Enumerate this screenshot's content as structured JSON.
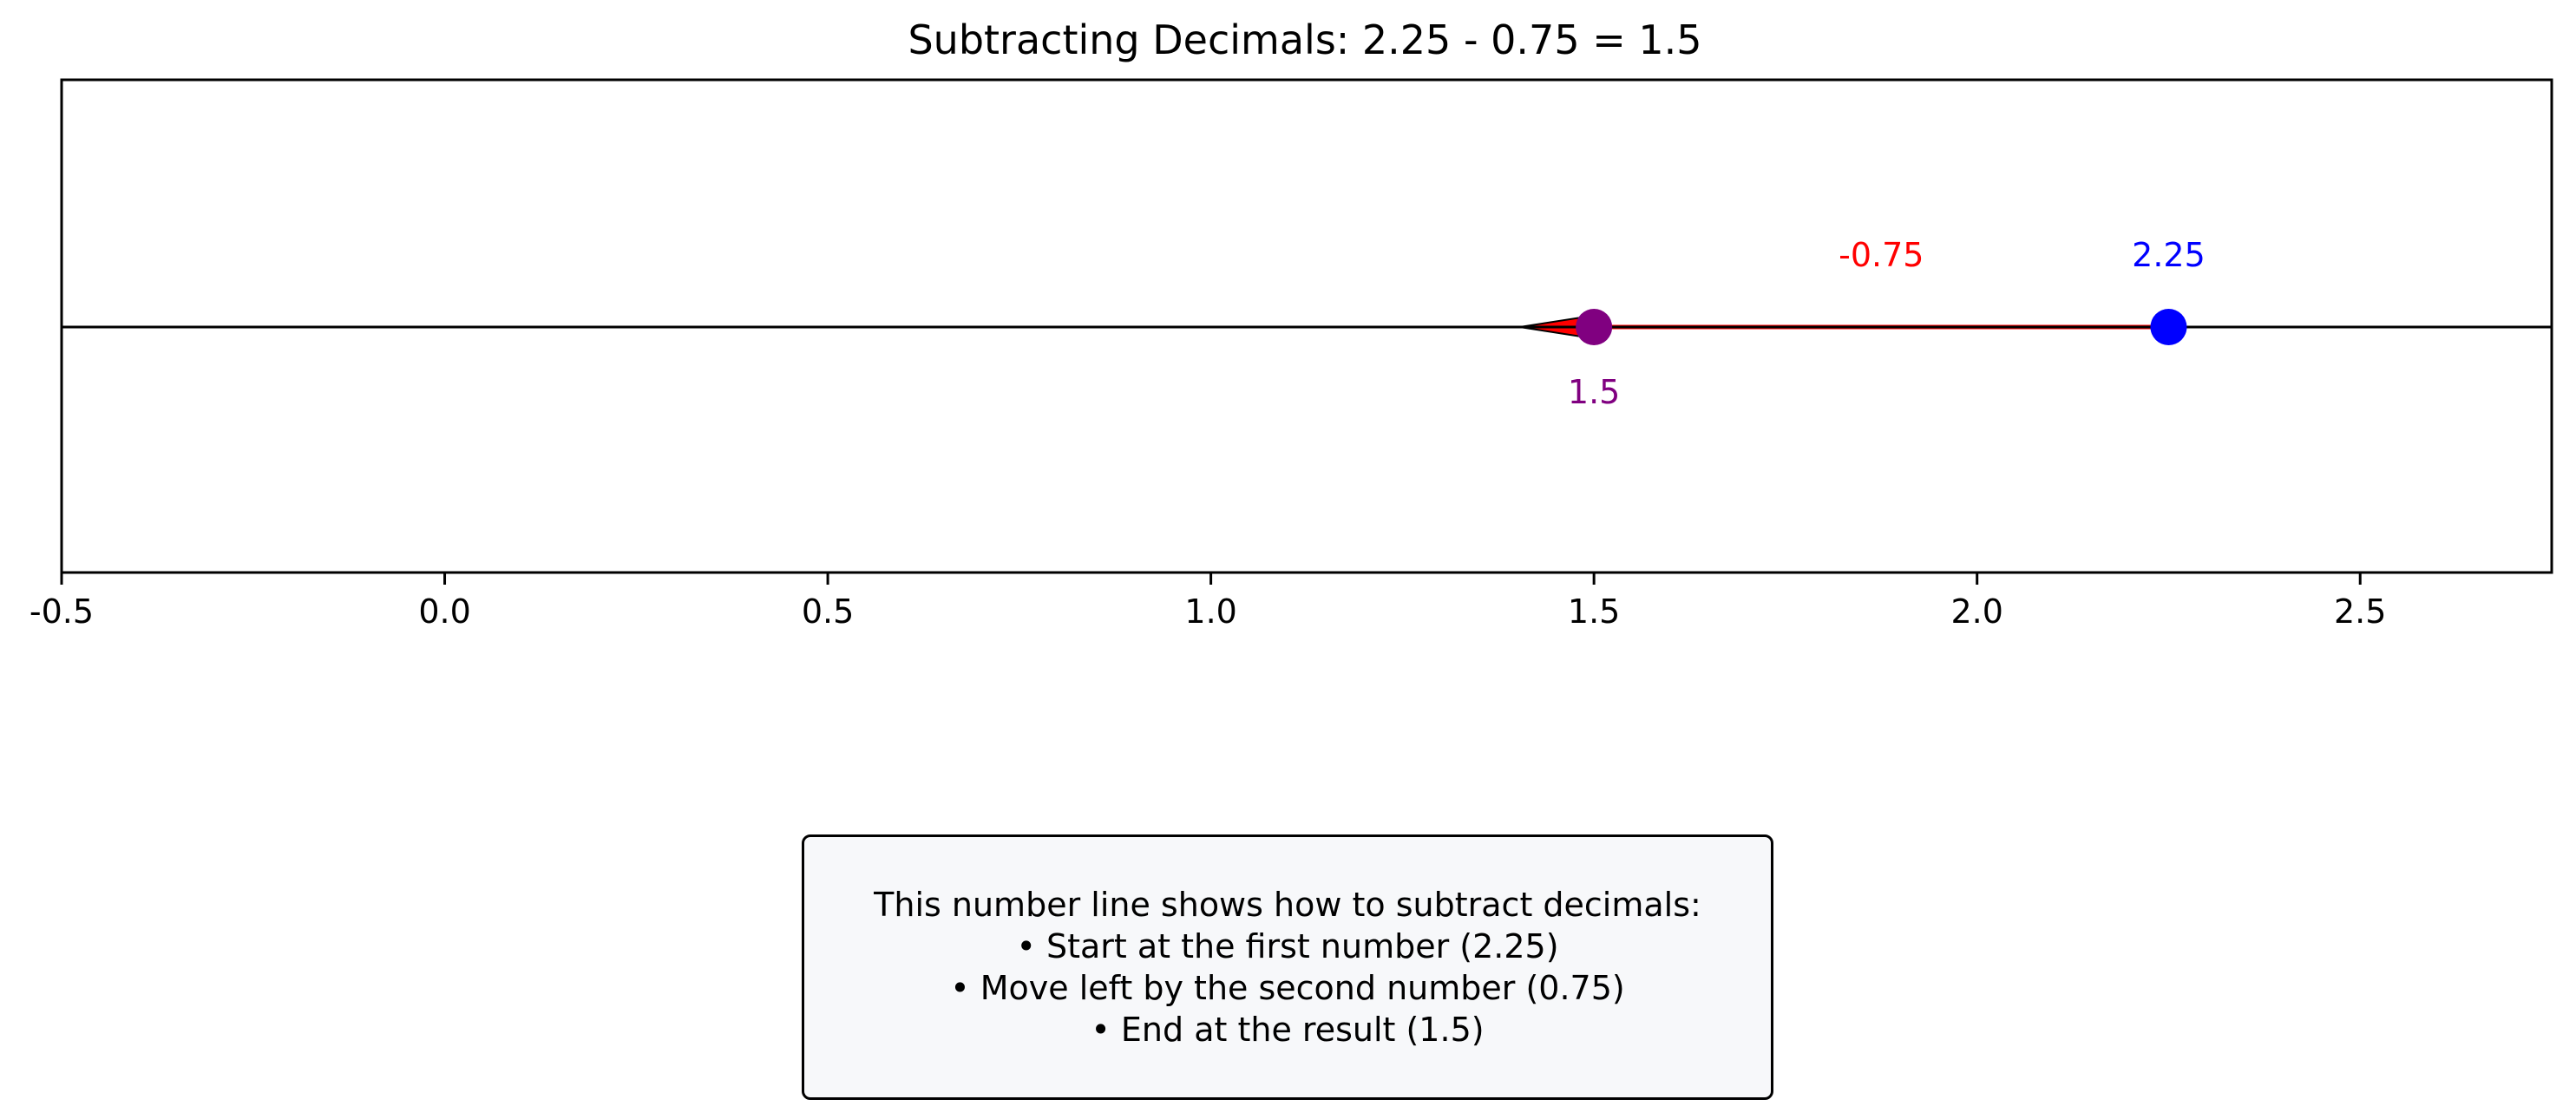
{
  "chart_data": {
    "type": "number_line",
    "title": "Subtracting Decimals: 2.25 - 0.75 = 1.5",
    "xlim": [
      -0.5,
      2.75
    ],
    "ticks": [
      "-0.5",
      "0.0",
      "0.5",
      "1.0",
      "1.5",
      "2.0",
      "2.5"
    ],
    "tick_values": [
      -0.5,
      0.0,
      0.5,
      1.0,
      1.5,
      2.0,
      2.5
    ],
    "start": {
      "value": 2.25,
      "label": "2.25",
      "color": "#0000ff"
    },
    "step": {
      "value": -0.75,
      "label": "-0.75",
      "color": "#ff0000"
    },
    "result": {
      "value": 1.5,
      "label": "1.5",
      "color": "#800080"
    },
    "grid": false
  },
  "explanation": {
    "lines": [
      "This number line shows how to subtract decimals:",
      "• Start at the first number (2.25)",
      "• Move left by the second number (0.75)",
      "• End at the result (1.5)"
    ]
  }
}
